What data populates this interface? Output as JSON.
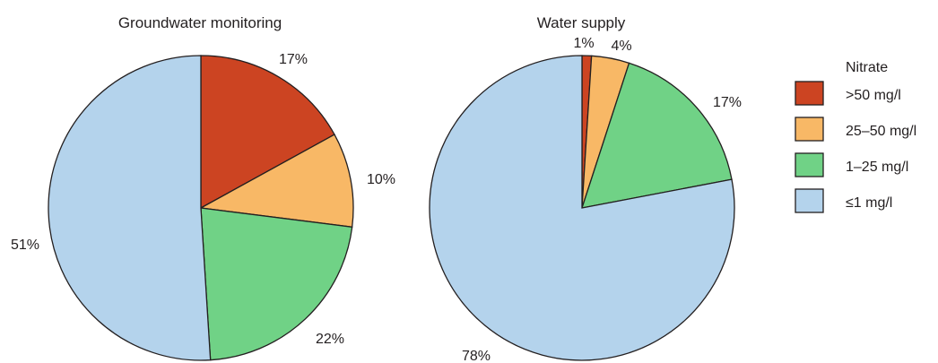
{
  "colors": {
    "gt50": "#cc4422",
    "25to50": "#f8b866",
    "1to25": "#70d286",
    "le1": "#b4d3ec"
  },
  "legend": {
    "title": "Nitrate",
    "items": [
      {
        "label": ">50 mg/l",
        "color_key": "gt50"
      },
      {
        "label": "25–50 mg/l",
        "color_key": "25to50"
      },
      {
        "label": "1–25 mg/l",
        "color_key": "1to25"
      },
      {
        "label": "≤1 mg/l",
        "color_key": "le1"
      }
    ]
  },
  "chart_data": [
    {
      "type": "pie",
      "title": "Groundwater monitoring",
      "categories": [
        ">50 mg/l",
        "25–50 mg/l",
        "1–25 mg/l",
        "≤1 mg/l"
      ],
      "values": [
        17,
        10,
        22,
        51
      ],
      "labels": [
        "17%",
        "10%",
        "22%",
        "51%"
      ],
      "start": "12 o'clock",
      "direction": "clockwise"
    },
    {
      "type": "pie",
      "title": "Water supply",
      "categories": [
        ">50 mg/l",
        "25–50 mg/l",
        "1–25 mg/l",
        "≤1 mg/l"
      ],
      "values": [
        1,
        4,
        17,
        78
      ],
      "labels": [
        "1%",
        "4%",
        "17%",
        "78%"
      ],
      "start": "12 o'clock",
      "direction": "clockwise"
    }
  ]
}
